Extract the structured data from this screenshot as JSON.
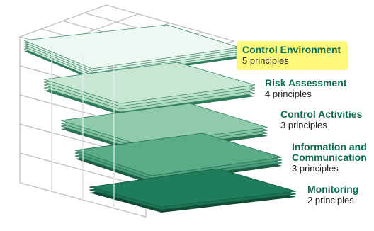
{
  "layers": [
    {
      "title": "Control Environment",
      "subtitle": "5 principles",
      "highlighted": true,
      "color": "#dff1e6"
    },
    {
      "title": "Risk Assessment",
      "subtitle": "4 principles",
      "highlighted": false,
      "color": "#b7dfc7"
    },
    {
      "title": "Control Activities",
      "subtitle": "3 principles",
      "highlighted": false,
      "color": "#84c3a3"
    },
    {
      "title": "Information and",
      "title2": "Communication",
      "subtitle": "3 principles",
      "highlighted": false,
      "color": "#4fa37f"
    },
    {
      "title": "Monitoring",
      "subtitle": "2 principles",
      "highlighted": false,
      "color": "#1f7d5c"
    }
  ],
  "colors": {
    "label": "#0e6b52",
    "highlight": "#fff87a",
    "grid": "#b9b9b9"
  }
}
